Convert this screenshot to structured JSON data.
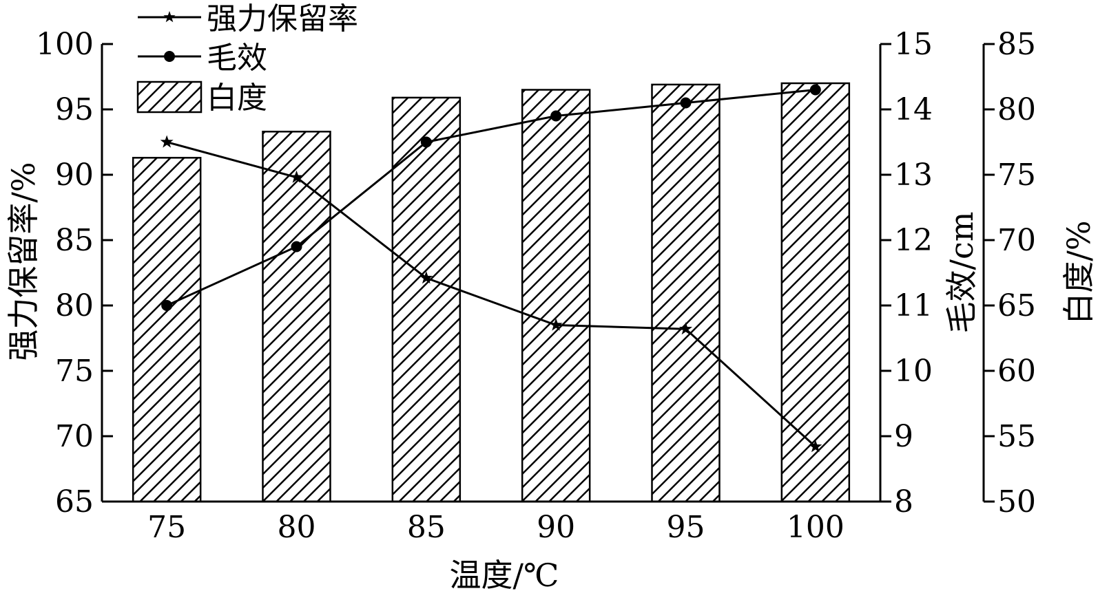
{
  "chart_data": {
    "type": "bar",
    "xlabel": "温度/℃",
    "categories": [
      "75",
      "80",
      "85",
      "90",
      "95",
      "100"
    ],
    "axes": {
      "left": {
        "label": "强力保留率/%",
        "ylim": [
          65,
          100
        ],
        "ticks": [
          65,
          70,
          75,
          80,
          85,
          90,
          95,
          100
        ]
      },
      "right1": {
        "label": "毛效/cm",
        "ylim": [
          8,
          15
        ],
        "ticks": [
          8,
          9,
          10,
          11,
          12,
          13,
          14,
          15
        ]
      },
      "right2": {
        "label": "白度/%",
        "ylim": [
          50,
          85
        ],
        "ticks": [
          50,
          55,
          60,
          65,
          70,
          75,
          80,
          85
        ]
      }
    },
    "series": [
      {
        "name": "强力保留率",
        "type": "line",
        "marker": "star",
        "axis": "left",
        "values": [
          92.5,
          89.8,
          82.1,
          78.5,
          78.2,
          69.2
        ]
      },
      {
        "name": "毛效",
        "type": "line",
        "marker": "circle",
        "axis": "right1",
        "values": [
          11.0,
          11.9,
          13.5,
          13.9,
          14.1,
          14.3
        ]
      },
      {
        "name": "白度",
        "type": "bar",
        "fill": "hatched",
        "axis": "right2",
        "values": [
          76.3,
          78.3,
          80.9,
          81.5,
          81.9,
          82.0
        ]
      }
    ],
    "legend": {
      "placement": "top-left"
    },
    "colors": {
      "ink": "#000000",
      "background": "#ffffff"
    }
  }
}
